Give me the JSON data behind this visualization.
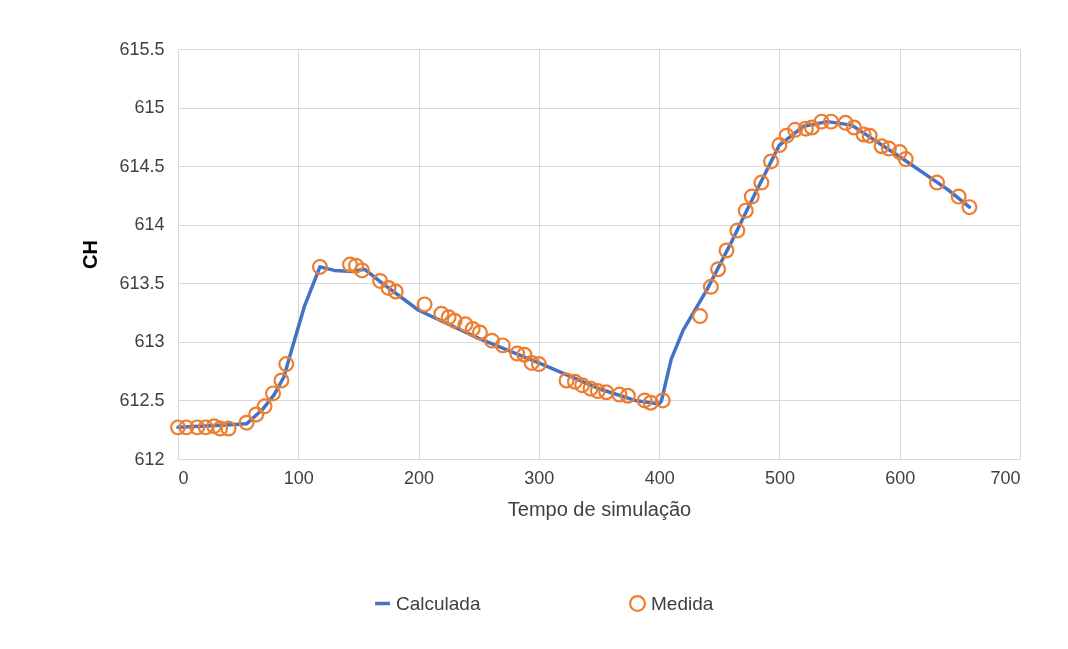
{
  "chart_data": {
    "type": "line",
    "xlabel": "Tempo de simulação",
    "ylabel": "CH",
    "xlim": [
      0,
      700
    ],
    "xticks": [
      0,
      100,
      200,
      300,
      400,
      500,
      600,
      700
    ],
    "ylim": [
      612,
      615.5
    ],
    "yticks": [
      612,
      612.5,
      613,
      613.5,
      614,
      614.5,
      615,
      615.5
    ],
    "grid": true,
    "legend": "bottom",
    "series": [
      {
        "name": "Calculada",
        "type": "line",
        "color": "#4472c4",
        "line_style": "solid",
        "x": [
          0,
          40,
          57,
          70,
          80,
          88,
          95,
          105,
          118,
          130,
          145,
          155,
          170,
          200,
          250,
          300,
          350,
          380,
          400,
          402,
          410,
          420,
          440,
          460,
          480,
          500,
          520,
          540,
          560,
          600,
          640,
          658
        ],
        "values": [
          612.27,
          612.29,
          612.3,
          612.42,
          612.55,
          612.7,
          612.95,
          613.3,
          613.64,
          613.61,
          613.6,
          613.62,
          613.5,
          613.27,
          613.03,
          612.82,
          612.6,
          612.5,
          612.47,
          612.5,
          612.85,
          613.1,
          613.45,
          613.85,
          614.27,
          614.68,
          614.84,
          614.88,
          614.85,
          614.58,
          614.3,
          614.15
        ]
      },
      {
        "name": "Medida",
        "type": "scatter",
        "marker": "circle",
        "color": "#ed7d31",
        "x": [
          0,
          7,
          16,
          23,
          30,
          35,
          42,
          57,
          65,
          72,
          79,
          86,
          90,
          118,
          143,
          148,
          153,
          168,
          175,
          181,
          205,
          219,
          225,
          230,
          239,
          245,
          251,
          261,
          270,
          282,
          288,
          294,
          300,
          323,
          330,
          336,
          343,
          349,
          356,
          367,
          374,
          388,
          393,
          403,
          434,
          443,
          449,
          456,
          465,
          472,
          477,
          485,
          493,
          500,
          506,
          513,
          522,
          527,
          535,
          543,
          555,
          562,
          570,
          575,
          585,
          591,
          600,
          605,
          631,
          649,
          658
        ],
        "values": [
          612.27,
          612.27,
          612.27,
          612.27,
          612.28,
          612.26,
          612.26,
          612.31,
          612.38,
          612.45,
          612.56,
          612.67,
          612.81,
          613.64,
          613.66,
          613.65,
          613.61,
          613.52,
          613.46,
          613.43,
          613.32,
          613.24,
          613.21,
          613.18,
          613.15,
          613.11,
          613.08,
          613.01,
          612.97,
          612.9,
          612.89,
          612.82,
          612.81,
          612.67,
          612.66,
          612.63,
          612.6,
          612.58,
          612.57,
          612.55,
          612.54,
          612.5,
          612.48,
          612.5,
          613.22,
          613.47,
          613.62,
          613.78,
          613.95,
          614.12,
          614.24,
          614.36,
          614.54,
          614.68,
          614.76,
          614.81,
          614.82,
          614.83,
          614.88,
          614.88,
          614.87,
          614.83,
          614.77,
          614.76,
          614.67,
          614.65,
          614.62,
          614.56,
          614.36,
          614.24,
          614.15
        ]
      }
    ]
  }
}
